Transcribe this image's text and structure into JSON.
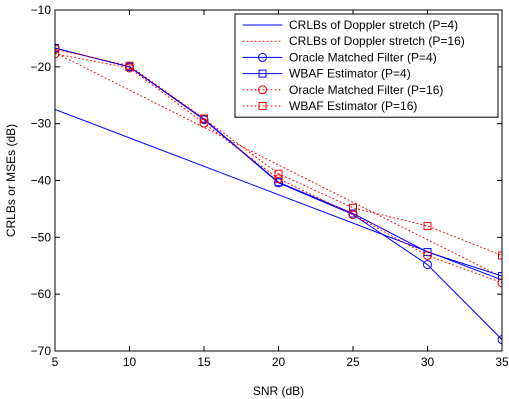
{
  "chart_data": {
    "type": "line",
    "title": "",
    "xlabel": "SNR (dB)",
    "ylabel": "CRLBs or MSEs (dB)",
    "xlim": [
      5,
      35
    ],
    "ylim": [
      -70,
      -10
    ],
    "xticks": [
      5,
      10,
      15,
      20,
      25,
      30,
      35
    ],
    "yticks": [
      -70,
      -60,
      -50,
      -40,
      -30,
      -20,
      -10
    ],
    "xtick_labels": [
      "5",
      "10",
      "15",
      "20",
      "25",
      "30",
      "35"
    ],
    "ytick_labels": [
      "−70",
      "−60",
      "−50",
      "−40",
      "−30",
      "−20",
      "−10"
    ],
    "grid": false,
    "legend_position": "top-right",
    "series": [
      {
        "name": "CRLBs of Doppler stretch (P=4)",
        "color": "#0000ff",
        "line": "solid",
        "marker": "none",
        "x": [
          5,
          35
        ],
        "y": [
          -27.5,
          -57.5
        ]
      },
      {
        "name": "CRLBs of Doppler stretch (P=16)",
        "color": "#ff0000",
        "line": "dotted",
        "marker": "none",
        "x": [
          5,
          35
        ],
        "y": [
          -17.5,
          -57.0
        ]
      },
      {
        "name": "Oracle Matched Filter (P=4)",
        "color": "#0000ff",
        "line": "solid",
        "marker": "circle",
        "x": [
          5,
          10,
          15,
          20,
          25,
          30,
          35
        ],
        "y": [
          -16.7,
          -20.0,
          -29.3,
          -40.4,
          -46.0,
          -54.8,
          -68.0
        ]
      },
      {
        "name": "WBAF Estimator (P=4)",
        "color": "#0000ff",
        "line": "solid",
        "marker": "square",
        "x": [
          5,
          10,
          15,
          20,
          25,
          30,
          35
        ],
        "y": [
          -16.7,
          -20.0,
          -29.2,
          -40.3,
          -45.8,
          -52.6,
          -56.8
        ]
      },
      {
        "name": "Oracle Matched Filter (P=16)",
        "color": "#ff0000",
        "line": "dotted",
        "marker": "circle",
        "x": [
          5,
          10,
          15,
          20,
          25,
          30,
          35
        ],
        "y": [
          -17.7,
          -20.2,
          -29.9,
          -39.7,
          -46.0,
          -53.2,
          -58.0
        ]
      },
      {
        "name": "WBAF Estimator (P=16)",
        "color": "#ff0000",
        "line": "dotted",
        "marker": "square",
        "x": [
          5,
          10,
          15,
          20,
          25,
          30,
          35
        ],
        "y": [
          -16.9,
          -19.8,
          -29.1,
          -38.8,
          -44.8,
          -48.0,
          -53.2
        ]
      }
    ]
  }
}
